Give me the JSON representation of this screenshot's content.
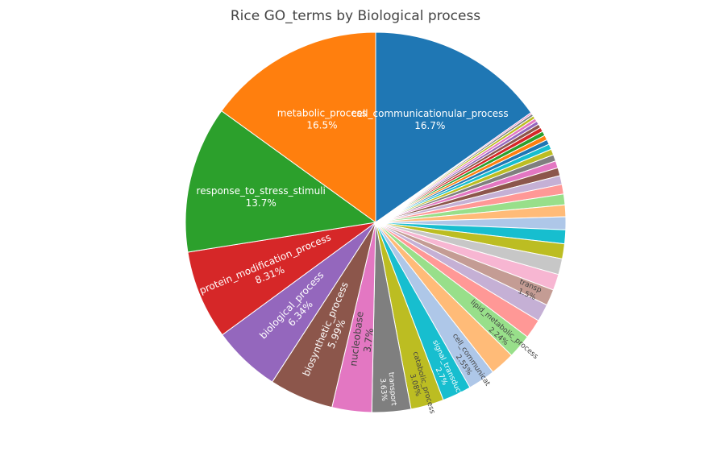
{
  "chart_data": {
    "type": "pie",
    "title": "Rice GO_terms by Biological process",
    "slices": [
      {
        "label": "cell_communicationular_process",
        "value": 16.7,
        "pct_text": "16.7%",
        "color": "#1f77b4"
      },
      {
        "label": "",
        "value": 0.15,
        "pct_text": "",
        "color": "#e377c2"
      },
      {
        "label": "",
        "value": 0.22,
        "pct_text": "",
        "color": "#7f7f7f"
      },
      {
        "label": "",
        "value": 0.28,
        "pct_text": "",
        "color": "#bcbd22"
      },
      {
        "label": "",
        "value": 0.3,
        "pct_text": "",
        "color": "#e377c2"
      },
      {
        "label": "",
        "value": 0.32,
        "pct_text": "",
        "color": "#9467bd"
      },
      {
        "label": "",
        "value": 0.36,
        "pct_text": "",
        "color": "#8c564b"
      },
      {
        "label": "",
        "value": 0.4,
        "pct_text": "",
        "color": "#d62728"
      },
      {
        "label": "",
        "value": 0.42,
        "pct_text": "",
        "color": "#2ca02c"
      },
      {
        "label": "",
        "value": 0.44,
        "pct_text": "",
        "color": "#ff7f0e"
      },
      {
        "label": "",
        "value": 0.46,
        "pct_text": "",
        "color": "#1f77b4"
      },
      {
        "label": "",
        "value": 0.5,
        "pct_text": "",
        "color": "#17becf"
      },
      {
        "label": "",
        "value": 0.55,
        "pct_text": "",
        "color": "#bcbd22"
      },
      {
        "label": "",
        "value": 0.6,
        "pct_text": "",
        "color": "#7f7f7f"
      },
      {
        "label": "",
        "value": 0.66,
        "pct_text": "",
        "color": "#e377c2"
      },
      {
        "label": "",
        "value": 0.75,
        "pct_text": "",
        "color": "#8c564b"
      },
      {
        "label": "",
        "value": 0.82,
        "pct_text": "",
        "color": "#c5b0d5"
      },
      {
        "label": "",
        "value": 0.9,
        "pct_text": "",
        "color": "#ff9896"
      },
      {
        "label": "",
        "value": 1.0,
        "pct_text": "",
        "color": "#98df8a"
      },
      {
        "label": "",
        "value": 1.1,
        "pct_text": "",
        "color": "#ffbb78"
      },
      {
        "label": "",
        "value": 1.2,
        "pct_text": "",
        "color": "#aec7e8"
      },
      {
        "label": "",
        "value": 1.3,
        "pct_text": "",
        "color": "#17becf"
      },
      {
        "label": "",
        "value": 1.4,
        "pct_text": "",
        "color": "#bcbd22"
      },
      {
        "label": "",
        "value": 1.48,
        "pct_text": "",
        "color": "#c7c7c7"
      },
      {
        "label": "",
        "value": 1.5,
        "pct_text": "",
        "color": "#f7b6d2"
      },
      {
        "label": "transp",
        "value": 1.5,
        "pct_text": "1.5%",
        "color": "#c49c94"
      },
      {
        "label": "",
        "value": 1.64,
        "pct_text": "",
        "color": "#c5b0d5"
      },
      {
        "label": "",
        "value": 1.8,
        "pct_text": "",
        "color": "#ff9896"
      },
      {
        "label": "lipid_metabolic_process",
        "value": 2.24,
        "pct_text": "2.24%",
        "color": "#98df8a"
      },
      {
        "label": "",
        "value": 2.3,
        "pct_text": "",
        "color": "#ffbb78"
      },
      {
        "label": "cell_communicat",
        "value": 2.55,
        "pct_text": "2.55%",
        "color": "#aec7e8"
      },
      {
        "label": "signal_transduction",
        "value": 2.7,
        "pct_text": "2.7%",
        "color": "#17becf"
      },
      {
        "label": "catabolic_process",
        "value": 3.08,
        "pct_text": "3.08%",
        "color": "#bcbd22"
      },
      {
        "label": "transport",
        "value": 3.63,
        "pct_text": "3.63%",
        "color": "#7f7f7f"
      },
      {
        "label": "nucleobase",
        "value": 3.7,
        "pct_text": "3.7%",
        "color": "#e377c2"
      },
      {
        "label": "biosynthetic_process",
        "value": 5.99,
        "pct_text": "5.99%",
        "color": "#8c564b"
      },
      {
        "label": "biological_process",
        "value": 6.34,
        "pct_text": "6.34%",
        "color": "#9467bd"
      },
      {
        "label": "protein_modification_process",
        "value": 8.31,
        "pct_text": "8.31%",
        "color": "#d62728"
      },
      {
        "label": "response_to_stress_stimuli",
        "value": 13.7,
        "pct_text": "13.7%",
        "color": "#2ca02c"
      },
      {
        "label": "metabolic_process",
        "value": 16.5,
        "pct_text": "16.5%",
        "color": "#ff7f0e"
      }
    ]
  }
}
